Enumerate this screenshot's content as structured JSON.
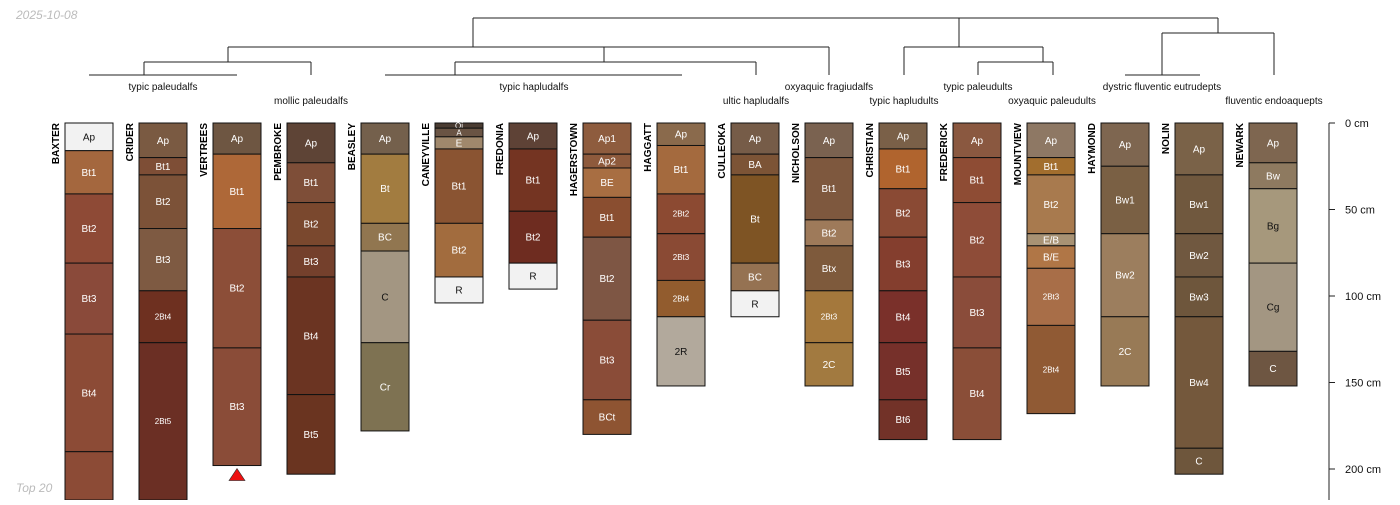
{
  "date_stamp": "2025-10-08",
  "footer_note": "Top 20",
  "depth_axis": {
    "unit": "cm",
    "ticks": [
      {
        "depth": 0,
        "label": "0 cm"
      },
      {
        "depth": 50,
        "label": "50 cm"
      },
      {
        "depth": 100,
        "label": "100 cm"
      },
      {
        "depth": 150,
        "label": "150 cm"
      },
      {
        "depth": 200,
        "label": "200 cm"
      }
    ]
  },
  "groups": [
    {
      "id": "g1",
      "label": "typic paleudalfs"
    },
    {
      "id": "g2",
      "label": "mollic paleudalfs"
    },
    {
      "id": "g3",
      "label": "typic hapludalfs"
    },
    {
      "id": "g4",
      "label": "ultic hapludalfs"
    },
    {
      "id": "g5",
      "label": "oxyaquic fragiudalfs"
    },
    {
      "id": "g6",
      "label": "typic hapludults"
    },
    {
      "id": "g7",
      "label": "typic paleudults"
    },
    {
      "id": "g8",
      "label": "oxyaquic paleudults"
    },
    {
      "id": "g9",
      "label": "dystric fluventic eutrudepts"
    },
    {
      "id": "g10",
      "label": "fluventic endoaquepts"
    }
  ],
  "profiles": [
    {
      "name": "BAXTER",
      "horizons": [
        {
          "name": "Ap",
          "top": 0,
          "bottom": 16,
          "color": "#f2f2f2"
        },
        {
          "name": "Bt1",
          "top": 16,
          "bottom": 41,
          "color": "#a4673e"
        },
        {
          "name": "Bt2",
          "top": 41,
          "bottom": 81,
          "color": "#8e4a36"
        },
        {
          "name": "Bt3",
          "top": 81,
          "bottom": 122,
          "color": "#8a4a3a"
        },
        {
          "name": "Bt4",
          "top": 122,
          "bottom": 190,
          "color": "#8c4b36"
        },
        {
          "name": "",
          "top": 190,
          "bottom": 220,
          "color": "#8c4b36"
        }
      ]
    },
    {
      "name": "CRIDER",
      "horizons": [
        {
          "name": "Ap",
          "top": 0,
          "bottom": 20,
          "color": "#7a5a42"
        },
        {
          "name": "Bt1",
          "top": 20,
          "bottom": 30,
          "color": "#7e4e36"
        },
        {
          "name": "Bt2",
          "top": 30,
          "bottom": 61,
          "color": "#7c5238"
        },
        {
          "name": "Bt3",
          "top": 61,
          "bottom": 97,
          "color": "#7e5a42"
        },
        {
          "name": "2Bt4",
          "top": 97,
          "bottom": 127,
          "color": "#6e3020"
        },
        {
          "name": "2Bt5",
          "top": 127,
          "bottom": 220,
          "color": "#6b2f24"
        }
      ]
    },
    {
      "name": "VERTREES",
      "horizons": [
        {
          "name": "Ap",
          "top": 0,
          "bottom": 18,
          "color": "#6e5642"
        },
        {
          "name": "Bt1",
          "top": 18,
          "bottom": 61,
          "color": "#ae6838"
        },
        {
          "name": "Bt2",
          "top": 61,
          "bottom": 130,
          "color": "#8c4e38"
        },
        {
          "name": "Bt3",
          "top": 130,
          "bottom": 198,
          "color": "#8a4c38"
        }
      ],
      "marker": true
    },
    {
      "name": "PEMBROKE",
      "horizons": [
        {
          "name": "Ap",
          "top": 0,
          "bottom": 23,
          "color": "#5e4436"
        },
        {
          "name": "Bt1",
          "top": 23,
          "bottom": 46,
          "color": "#7e4e38"
        },
        {
          "name": "Bt2",
          "top": 46,
          "bottom": 71,
          "color": "#7a482e"
        },
        {
          "name": "Bt3",
          "top": 71,
          "bottom": 89,
          "color": "#74402c"
        },
        {
          "name": "Bt4",
          "top": 89,
          "bottom": 157,
          "color": "#6b3422"
        },
        {
          "name": "Bt5",
          "top": 157,
          "bottom": 203,
          "color": "#6a3420"
        }
      ]
    },
    {
      "name": "BEASLEY",
      "horizons": [
        {
          "name": "Ap",
          "top": 0,
          "bottom": 18,
          "color": "#74604c"
        },
        {
          "name": "Bt",
          "top": 18,
          "bottom": 58,
          "color": "#a27c40"
        },
        {
          "name": "BC",
          "top": 58,
          "bottom": 74,
          "color": "#917650"
        },
        {
          "name": "C",
          "top": 74,
          "bottom": 127,
          "color": "#a39682"
        },
        {
          "name": "Cr",
          "top": 127,
          "bottom": 178,
          "color": "#7e7252"
        }
      ]
    },
    {
      "name": "CANEYVILLE",
      "horizons": [
        {
          "name": "Oi",
          "top": 0,
          "bottom": 3,
          "color": "#4a3c32"
        },
        {
          "name": "A",
          "top": 3,
          "bottom": 8,
          "color": "#6a5444"
        },
        {
          "name": "E",
          "top": 8,
          "bottom": 15,
          "color": "#a0886c"
        },
        {
          "name": "Bt1",
          "top": 15,
          "bottom": 58,
          "color": "#8a5432"
        },
        {
          "name": "Bt2",
          "top": 58,
          "bottom": 89,
          "color": "#a26c3e"
        },
        {
          "name": "R",
          "top": 89,
          "bottom": 104,
          "color": "#f2f2f2"
        }
      ]
    },
    {
      "name": "FREDONIA",
      "horizons": [
        {
          "name": "Ap",
          "top": 0,
          "bottom": 15,
          "color": "#5e4236"
        },
        {
          "name": "Bt1",
          "top": 15,
          "bottom": 51,
          "color": "#743422"
        },
        {
          "name": "Bt2",
          "top": 51,
          "bottom": 81,
          "color": "#6e2c20"
        },
        {
          "name": "R",
          "top": 81,
          "bottom": 96,
          "color": "#f2f2f2"
        }
      ]
    },
    {
      "name": "HAGERSTOWN",
      "horizons": [
        {
          "name": "Ap1",
          "top": 0,
          "bottom": 18,
          "color": "#8e5c3e"
        },
        {
          "name": "Ap2",
          "top": 18,
          "bottom": 26,
          "color": "#8e5a3c"
        },
        {
          "name": "BE",
          "top": 26,
          "bottom": 43,
          "color": "#a86e42"
        },
        {
          "name": "Bt1",
          "top": 43,
          "bottom": 66,
          "color": "#8a4e30"
        },
        {
          "name": "Bt2",
          "top": 66,
          "bottom": 114,
          "color": "#7e5644"
        },
        {
          "name": "Bt3",
          "top": 114,
          "bottom": 160,
          "color": "#8a4c38"
        },
        {
          "name": "BCt",
          "top": 160,
          "bottom": 180,
          "color": "#8e5432"
        }
      ]
    },
    {
      "name": "HAGGATT",
      "horizons": [
        {
          "name": "Ap",
          "top": 0,
          "bottom": 13,
          "color": "#8a6a4c"
        },
        {
          "name": "Bt1",
          "top": 13,
          "bottom": 41,
          "color": "#a46a3e"
        },
        {
          "name": "2Bt2",
          "top": 41,
          "bottom": 64,
          "color": "#8c4a32"
        },
        {
          "name": "2Bt3",
          "top": 64,
          "bottom": 91,
          "color": "#8a4a34"
        },
        {
          "name": "2Bt4",
          "top": 91,
          "bottom": 112,
          "color": "#925c2e"
        },
        {
          "name": "2R",
          "top": 112,
          "bottom": 152,
          "color": "#b2a99c"
        }
      ]
    },
    {
      "name": "CULLEOKA",
      "horizons": [
        {
          "name": "Ap",
          "top": 0,
          "bottom": 18,
          "color": "#765c48"
        },
        {
          "name": "BA",
          "top": 18,
          "bottom": 30,
          "color": "#7c5436"
        },
        {
          "name": "Bt",
          "top": 30,
          "bottom": 81,
          "color": "#7e5424"
        },
        {
          "name": "BC",
          "top": 81,
          "bottom": 97,
          "color": "#957252"
        },
        {
          "name": "R",
          "top": 97,
          "bottom": 112,
          "color": "#f2f2f2"
        }
      ]
    },
    {
      "name": "NICHOLSON",
      "horizons": [
        {
          "name": "Ap",
          "top": 0,
          "bottom": 20,
          "color": "#7a6250"
        },
        {
          "name": "Bt1",
          "top": 20,
          "bottom": 56,
          "color": "#7e583e"
        },
        {
          "name": "Bt2",
          "top": 56,
          "bottom": 71,
          "color": "#9e7a5a"
        },
        {
          "name": "Btx",
          "top": 71,
          "bottom": 97,
          "color": "#7e5a3c"
        },
        {
          "name": "2Bt3",
          "top": 97,
          "bottom": 127,
          "color": "#a4783c"
        },
        {
          "name": "2C",
          "top": 127,
          "bottom": 152,
          "color": "#a27a40"
        }
      ]
    },
    {
      "name": "CHRISTIAN",
      "horizons": [
        {
          "name": "Ap",
          "top": 0,
          "bottom": 15,
          "color": "#7a6048"
        },
        {
          "name": "Bt1",
          "top": 15,
          "bottom": 38,
          "color": "#b0642e"
        },
        {
          "name": "Bt2",
          "top": 38,
          "bottom": 66,
          "color": "#8a4a34"
        },
        {
          "name": "Bt3",
          "top": 66,
          "bottom": 97,
          "color": "#843e2e"
        },
        {
          "name": "Bt4",
          "top": 97,
          "bottom": 127,
          "color": "#7a302a"
        },
        {
          "name": "Bt5",
          "top": 127,
          "bottom": 160,
          "color": "#76302a"
        },
        {
          "name": "Bt6",
          "top": 160,
          "bottom": 183,
          "color": "#723228"
        }
      ]
    },
    {
      "name": "FREDERICK",
      "horizons": [
        {
          "name": "Ap",
          "top": 0,
          "bottom": 20,
          "color": "#8a5840"
        },
        {
          "name": "Bt1",
          "top": 20,
          "bottom": 46,
          "color": "#8e4c34"
        },
        {
          "name": "Bt2",
          "top": 46,
          "bottom": 89,
          "color": "#8e4c38"
        },
        {
          "name": "Bt3",
          "top": 89,
          "bottom": 130,
          "color": "#8a4c3a"
        },
        {
          "name": "Bt4",
          "top": 130,
          "bottom": 183,
          "color": "#8a4e38"
        }
      ]
    },
    {
      "name": "MOUNTVIEW",
      "horizons": [
        {
          "name": "Ap",
          "top": 0,
          "bottom": 20,
          "color": "#8e7864"
        },
        {
          "name": "Bt1",
          "top": 20,
          "bottom": 30,
          "color": "#a26e2e"
        },
        {
          "name": "Bt2",
          "top": 30,
          "bottom": 64,
          "color": "#a87a4e"
        },
        {
          "name": "E/B",
          "top": 64,
          "bottom": 71,
          "color": "#a89274"
        },
        {
          "name": "B/E",
          "top": 71,
          "bottom": 84,
          "color": "#b07646"
        },
        {
          "name": "2Bt3",
          "top": 84,
          "bottom": 117,
          "color": "#a86e48"
        },
        {
          "name": "2Bt4",
          "top": 117,
          "bottom": 168,
          "color": "#905a34"
        }
      ]
    },
    {
      "name": "HAYMOND",
      "horizons": [
        {
          "name": "Ap",
          "top": 0,
          "bottom": 25,
          "color": "#7e6650"
        },
        {
          "name": "Bw1",
          "top": 25,
          "bottom": 64,
          "color": "#7a6044"
        },
        {
          "name": "Bw2",
          "top": 64,
          "bottom": 112,
          "color": "#9c7e5e"
        },
        {
          "name": "2C",
          "top": 112,
          "bottom": 152,
          "color": "#987a56"
        }
      ]
    },
    {
      "name": "NOLIN",
      "horizons": [
        {
          "name": "Ap",
          "top": 0,
          "bottom": 30,
          "color": "#7a6248"
        },
        {
          "name": "Bw1",
          "top": 30,
          "bottom": 64,
          "color": "#70583e"
        },
        {
          "name": "Bw2",
          "top": 64,
          "bottom": 89,
          "color": "#705840"
        },
        {
          "name": "Bw3",
          "top": 89,
          "bottom": 112,
          "color": "#6e563c"
        },
        {
          "name": "Bw4",
          "top": 112,
          "bottom": 188,
          "color": "#74583c"
        },
        {
          "name": "C",
          "top": 188,
          "bottom": 203,
          "color": "#6e563c"
        }
      ]
    },
    {
      "name": "NEWARK",
      "horizons": [
        {
          "name": "Ap",
          "top": 0,
          "bottom": 23,
          "color": "#7e6650"
        },
        {
          "name": "Bw",
          "top": 23,
          "bottom": 38,
          "color": "#8e7a60"
        },
        {
          "name": "Bg",
          "top": 38,
          "bottom": 81,
          "color": "#a6987c"
        },
        {
          "name": "Cg",
          "top": 81,
          "bottom": 132,
          "color": "#a39682"
        },
        {
          "name": "C",
          "top": 132,
          "bottom": 152,
          "color": "#6e5642"
        }
      ]
    }
  ]
}
